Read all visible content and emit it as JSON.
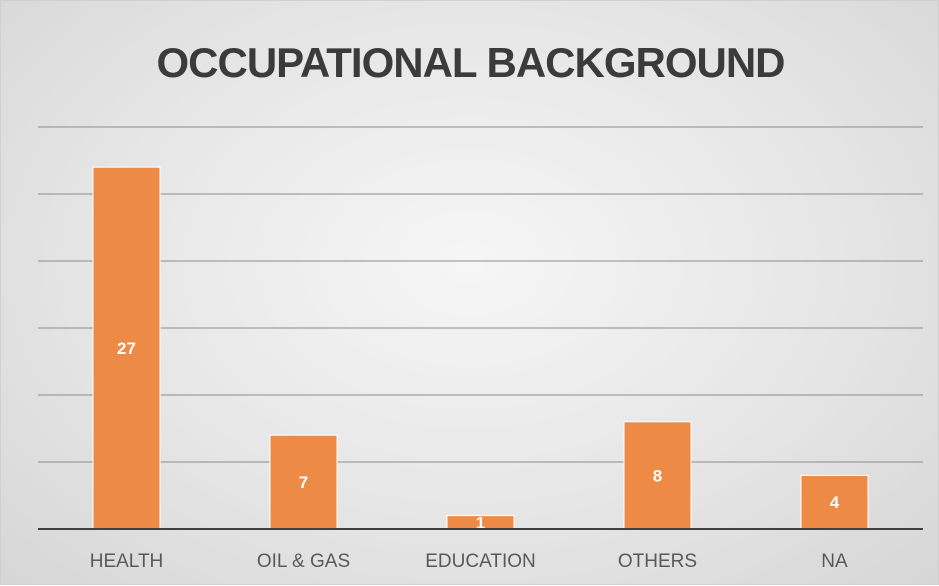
{
  "chart_data": {
    "type": "bar",
    "title": "OCCUPATIONAL BACKGROUND",
    "categories": [
      "HEALTH",
      "OIL & GAS",
      "EDUCATION",
      "OTHERS",
      "NA"
    ],
    "values": [
      27,
      7,
      1,
      8,
      4
    ],
    "data_labels": [
      "27",
      "7",
      "1",
      "8",
      "4"
    ],
    "ylim": [
      0,
      30
    ],
    "y_gridline_step": 5,
    "grid": true,
    "legend": "none",
    "colors": {
      "bar": "#ED8A45",
      "bar_edge": "#FFFFFF",
      "gridline": "#8C8C8C",
      "axis": "#404040",
      "title": "#3B3B3B",
      "tick_label": "#595959",
      "data_label": "#FFFFFF"
    }
  }
}
